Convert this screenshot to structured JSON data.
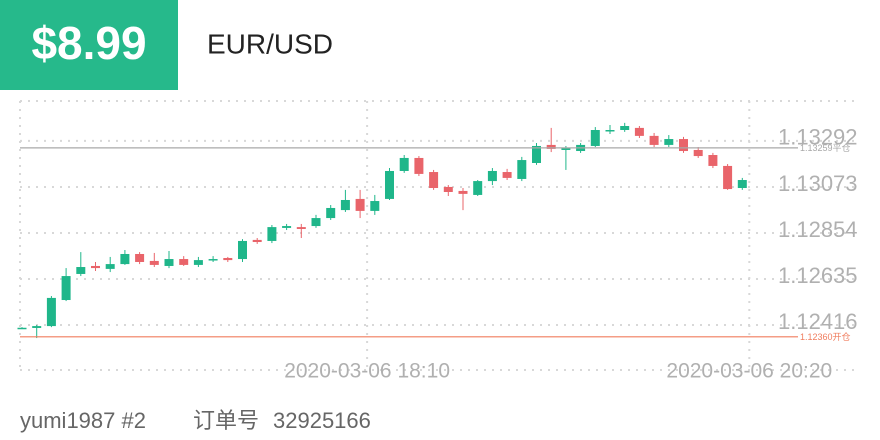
{
  "header": {
    "price": "$8.99",
    "symbol": "EUR/USD"
  },
  "chart_data": {
    "type": "candlestick",
    "categories": [
      null,
      null,
      null,
      null,
      null,
      null,
      null,
      null,
      null,
      null,
      null,
      null,
      null,
      null,
      null,
      null,
      null,
      null,
      null,
      null,
      null,
      null,
      null,
      "2020-03-06 18:10",
      null,
      null,
      null,
      null,
      null,
      null,
      null,
      null,
      null,
      null,
      null,
      null,
      null,
      null,
      null,
      null,
      null,
      null,
      null,
      null,
      null,
      null,
      null,
      null,
      null,
      "2020-03-06 20:20"
    ],
    "open": [
      1.12402,
      1.12402,
      1.12411,
      1.12535,
      1.12659,
      1.12697,
      1.12683,
      1.12706,
      1.12754,
      1.12721,
      1.12697,
      1.1273,
      1.12702,
      1.12725,
      1.12735,
      1.1273,
      1.12821,
      1.12816,
      1.12878,
      1.12882,
      1.12887,
      1.12925,
      1.12963,
      1.13016,
      1.12959,
      1.13016,
      1.13149,
      1.13211,
      1.13144,
      1.13073,
      1.13054,
      1.13035,
      1.13101,
      1.13144,
      1.13111,
      1.13187,
      1.13273,
      1.13249,
      1.13244,
      1.13268,
      1.13339,
      1.13344,
      1.13354,
      1.13316,
      1.13273,
      1.13301,
      1.13249,
      1.13225,
      1.13173,
      1.13068
    ],
    "high": [
      1.12406,
      1.12416,
      1.12554,
      1.12687,
      1.12763,
      1.12716,
      1.1274,
      1.12773,
      1.12763,
      1.12759,
      1.12768,
      1.12744,
      1.1274,
      1.12744,
      1.1274,
      1.12825,
      1.1283,
      1.12892,
      1.12897,
      1.12897,
      1.1294,
      1.12987,
      1.13059,
      1.13059,
      1.13035,
      1.13163,
      1.13225,
      1.1322,
      1.13154,
      1.13082,
      1.13068,
      1.13106,
      1.13163,
      1.13159,
      1.13216,
      1.13282,
      1.13354,
      1.13268,
      1.13282,
      1.13358,
      1.13368,
      1.13378,
      1.13363,
      1.1333,
      1.1332,
      1.13311,
      1.13263,
      1.13235,
      1.13182,
      1.13116
    ],
    "low": [
      1.12397,
      1.12354,
      1.12406,
      1.1253,
      1.12649,
      1.12673,
      1.12668,
      1.12702,
      1.12706,
      1.12692,
      1.12687,
      1.12697,
      1.12692,
      1.12716,
      1.12716,
      1.12716,
      1.12802,
      1.12806,
      1.12868,
      1.1283,
      1.12878,
      1.12916,
      1.12954,
      1.12925,
      1.1294,
      1.13011,
      1.1314,
      1.13125,
      1.13059,
      1.1303,
      1.12963,
      1.1303,
      1.13082,
      1.13106,
      1.13101,
      1.13178,
      1.13239,
      1.13154,
      1.13235,
      1.13263,
      1.13325,
      1.13335,
      1.13306,
      1.13263,
      1.13263,
      1.13235,
      1.13211,
      1.13163,
      1.13059,
      1.13059
    ],
    "close": [
      1.12403,
      1.12411,
      1.12545,
      1.12649,
      1.12692,
      1.12687,
      1.12706,
      1.12754,
      1.12716,
      1.12702,
      1.1273,
      1.12702,
      1.12725,
      1.1273,
      1.12725,
      1.12816,
      1.12811,
      1.12882,
      1.12887,
      1.12873,
      1.12925,
      1.12973,
      1.13011,
      1.12959,
      1.13006,
      1.13149,
      1.13211,
      1.13135,
      1.13068,
      1.13049,
      1.1304,
      1.13101,
      1.13149,
      1.13116,
      1.13201,
      1.13268,
      1.13254,
      1.13259,
      1.13273,
      1.13344,
      1.13344,
      1.13363,
      1.13316,
      1.13273,
      1.13301,
      1.13244,
      1.1322,
      1.13173,
      1.13063,
      1.13106
    ],
    "up_color": "#1fb68a",
    "down_color": "#e9646a",
    "ylim": [
      1.12202,
      1.13482
    ],
    "yticks": [
      {
        "value": 1.12416,
        "label": "1.12416"
      },
      {
        "value": 1.12635,
        "label": "1.12635"
      },
      {
        "value": 1.12854,
        "label": "1.12854"
      },
      {
        "value": 1.13073,
        "label": "1.13073"
      },
      {
        "value": 1.13292,
        "label": "1.13292"
      }
    ],
    "grid": true,
    "reference_lines": [
      {
        "value": 1.13259,
        "label": "1.13259平仓",
        "color": "#a8a8a8"
      },
      {
        "value": 1.1236,
        "label": "1.12360开仓",
        "color": "#f07d5e"
      }
    ]
  },
  "footer": {
    "user": "yumi1987 #2",
    "order_label": "订单号",
    "order_id": "32925166"
  }
}
